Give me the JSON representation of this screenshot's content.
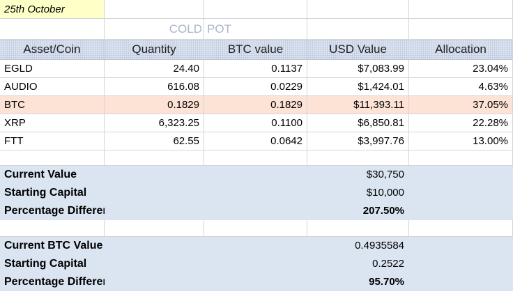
{
  "date_label": "25th October",
  "title": {
    "left": "COLD",
    "right": "POT"
  },
  "headers": [
    "Asset/Coin",
    "Quantity",
    "BTC value",
    "USD Value",
    "Allocation"
  ],
  "assets": [
    {
      "coin": "EGLD",
      "quantity": "24.40",
      "btc_value": "0.1137",
      "usd_value": "$7,083.99",
      "allocation": "23.04%"
    },
    {
      "coin": "AUDIO",
      "quantity": "616.08",
      "btc_value": "0.0229",
      "usd_value": "$1,424.01",
      "allocation": "4.63%"
    },
    {
      "coin": "BTC",
      "quantity": "0.1829",
      "btc_value": "0.1829",
      "usd_value": "$11,393.11",
      "allocation": "37.05%"
    },
    {
      "coin": "XRP",
      "quantity": "6,323.25",
      "btc_value": "0.1100",
      "usd_value": "$6,850.81",
      "allocation": "22.28%"
    },
    {
      "coin": "FTT",
      "quantity": "62.55",
      "btc_value": "0.0642",
      "usd_value": "$3,997.76",
      "allocation": "13.00%"
    }
  ],
  "usd_summary": {
    "current_value_label": "Current Value",
    "current_value": "$30,750",
    "starting_capital_label": "Starting Capital",
    "starting_capital": "$10,000",
    "pct_diff_label": "Percentage Difference",
    "pct_diff": "207.50%"
  },
  "btc_summary": {
    "current_value_label": "Current BTC Value",
    "current_value": "0.4935584",
    "starting_capital_label": "Starting Capital",
    "starting_capital": "0.2522",
    "pct_diff_label": "Percentage Difference",
    "pct_diff": "95.70%"
  },
  "colors": {
    "highlight_row": "#fde3d6",
    "summary_band": "#dbe4f1",
    "date_cell": "#ffffc8",
    "title_text": "#a9b6c9"
  }
}
